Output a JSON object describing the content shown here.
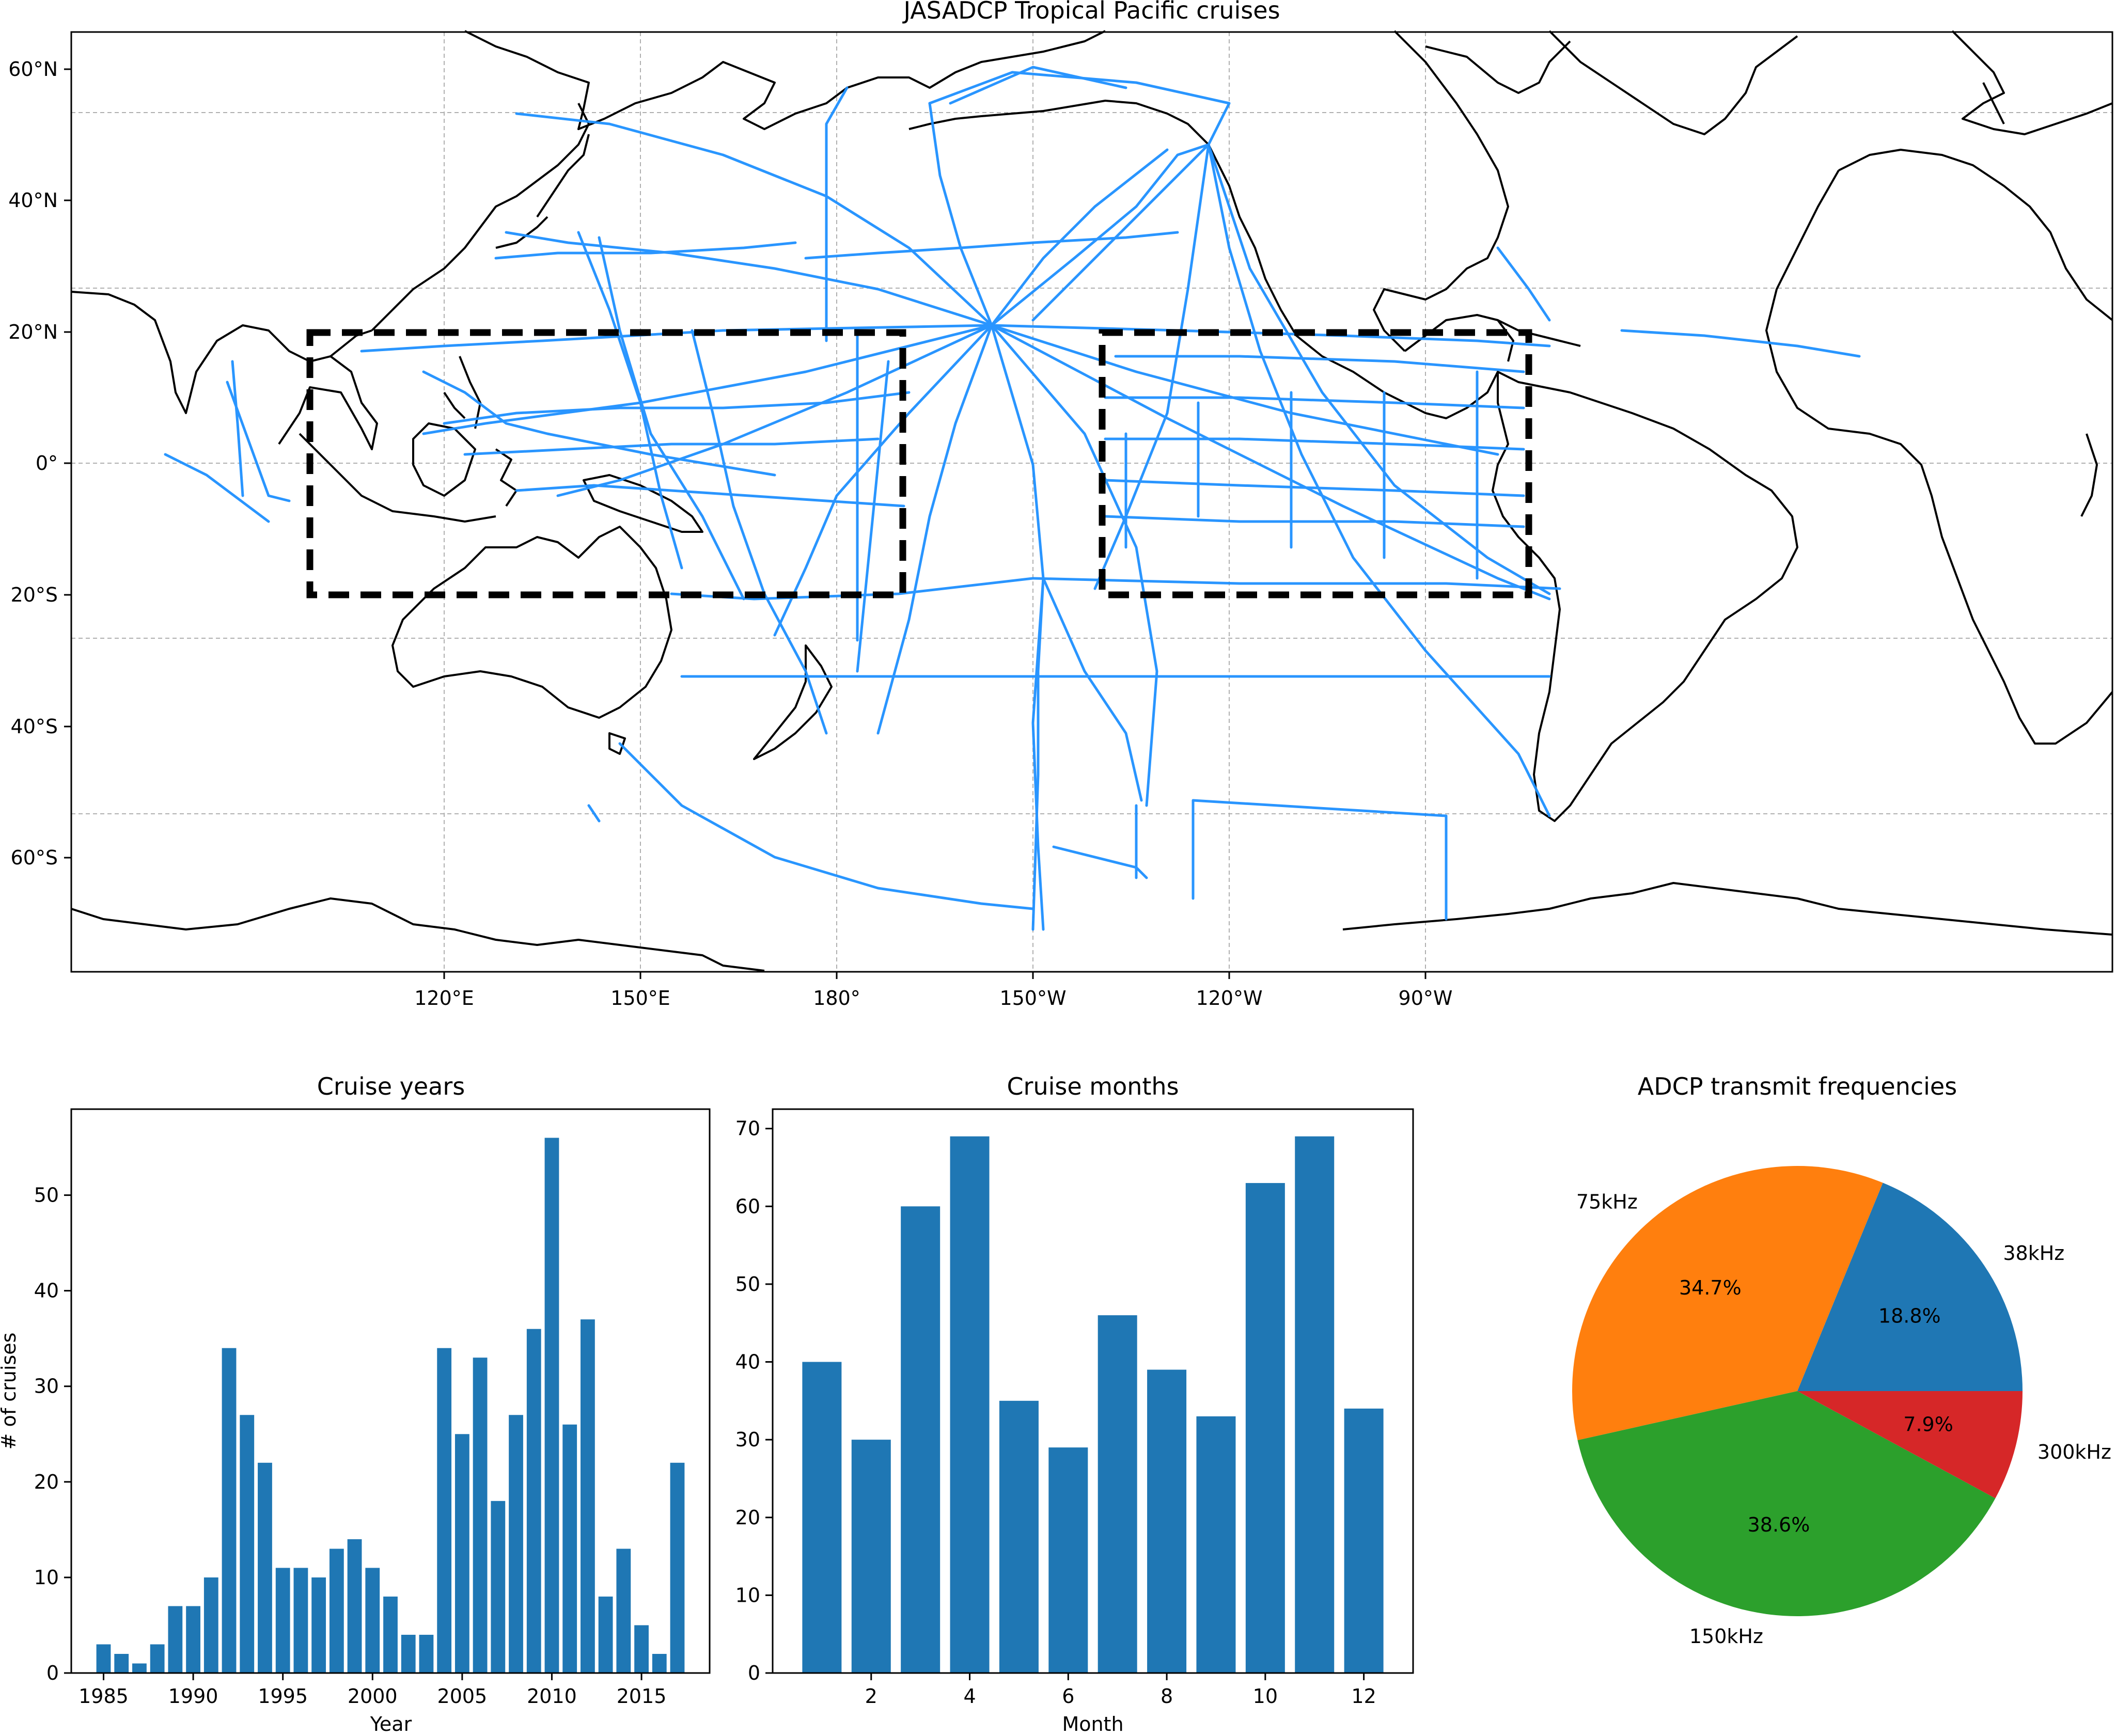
{
  "map": {
    "title": "JASADCP Tropical Pacific cruises",
    "lon_ticks": [
      "120°E",
      "150°E",
      "180°",
      "150°W",
      "120°W",
      "90°W"
    ],
    "lat_ticks": [
      "60°N",
      "40°N",
      "20°N",
      "0°",
      "20°S",
      "40°S",
      "60°S"
    ],
    "colors": {
      "track": "#1e90ff",
      "coast": "#000000",
      "box": "#000000"
    },
    "boxes_label": "dashed study regions"
  },
  "chart_data": [
    {
      "type": "bar",
      "title": "Cruise years",
      "xlabel": "Year",
      "ylabel": "# of cruises",
      "ylim": [
        0,
        59
      ],
      "xticks": [
        "1985",
        "1990",
        "1995",
        "2000",
        "2005",
        "2010",
        "2015"
      ],
      "yticks": [
        "0",
        "10",
        "20",
        "30",
        "40",
        "50"
      ],
      "categories": [
        1985,
        1986,
        1987,
        1988,
        1989,
        1990,
        1991,
        1992,
        1993,
        1994,
        1995,
        1996,
        1997,
        1998,
        1999,
        2000,
        2001,
        2002,
        2003,
        2004,
        2005,
        2006,
        2007,
        2008,
        2009,
        2010,
        2011,
        2012,
        2013,
        2014,
        2015,
        2016,
        2017
      ],
      "values": [
        3,
        2,
        1,
        3,
        7,
        7,
        10,
        34,
        27,
        22,
        11,
        11,
        10,
        13,
        14,
        11,
        8,
        4,
        4,
        34,
        25,
        33,
        18,
        27,
        36,
        56,
        26,
        37,
        8,
        13,
        5,
        2,
        22
      ],
      "color": "#1f77b4"
    },
    {
      "type": "bar",
      "title": "Cruise months",
      "xlabel": "Month",
      "ylabel": "",
      "ylim": [
        0,
        72.5
      ],
      "xticks": [
        "2",
        "4",
        "6",
        "8",
        "10",
        "12"
      ],
      "yticks": [
        "0",
        "10",
        "20",
        "30",
        "40",
        "50",
        "60",
        "70"
      ],
      "categories": [
        1,
        2,
        3,
        4,
        5,
        6,
        7,
        8,
        9,
        10,
        11,
        12
      ],
      "values": [
        40,
        30,
        60,
        69,
        35,
        29,
        46,
        39,
        33,
        63,
        69,
        34
      ],
      "color": "#1f77b4"
    },
    {
      "type": "pie",
      "title": "ADCP transmit frequencies",
      "labels": [
        "38kHz",
        "75kHz",
        "150kHz",
        "300kHz"
      ],
      "values": [
        18.8,
        34.7,
        38.6,
        7.9
      ],
      "pct_labels": [
        "18.8%",
        "34.7%",
        "38.6%",
        "7.9%"
      ],
      "colors": [
        "#1f77b4",
        "#ff7f0e",
        "#2ca02c",
        "#d62728"
      ]
    }
  ]
}
